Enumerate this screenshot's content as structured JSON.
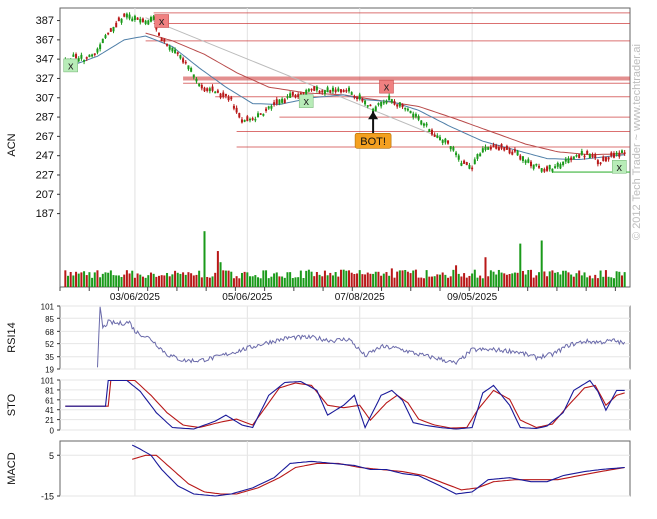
{
  "watermark": "© 2012 Tech Trader ~ www.techtrader.ai",
  "colors": {
    "up": "#1a9a1a",
    "down": "#b81818",
    "ma_blue": "#4f7fa8",
    "ma_red": "#b84a4a",
    "trendline": "#bbbbbb",
    "resistance": "#cc3333",
    "support": "#3cb43c",
    "rsi_line": "#6a6aaa",
    "stoch_k": "#1a1a9a",
    "stoch_d": "#b81818",
    "macd_line": "#1a1a9a",
    "signal_line": "#b81818",
    "marker_red_bg": "#f08080",
    "marker_green_bg": "#b8ecb8",
    "bot_bg": "#f4a020"
  },
  "chart_data": [
    {
      "type": "candlestick",
      "ylabel": "ACN",
      "ylim": [
        170,
        400
      ],
      "ticks": [
        387,
        367,
        347,
        327,
        307,
        287,
        267,
        247,
        227,
        207,
        187
      ],
      "x_ticks": [
        "03/06/2025",
        "05/06/2025",
        "07/08/2025",
        "09/05/2025"
      ],
      "x_tick_index": [
        26,
        68,
        110,
        152
      ],
      "n_bars": 210,
      "anchors": [
        [
          0,
          343
        ],
        [
          3,
          350
        ],
        [
          8,
          346
        ],
        [
          12,
          356
        ],
        [
          17,
          378
        ],
        [
          22,
          391
        ],
        [
          30,
          385
        ],
        [
          33,
          389
        ],
        [
          35,
          372
        ],
        [
          40,
          357
        ],
        [
          46,
          338
        ],
        [
          50,
          320
        ],
        [
          56,
          313
        ],
        [
          62,
          305
        ],
        [
          66,
          282
        ],
        [
          72,
          287
        ],
        [
          76,
          296
        ],
        [
          84,
          309
        ],
        [
          92,
          316
        ],
        [
          100,
          314
        ],
        [
          106,
          314
        ],
        [
          112,
          302
        ],
        [
          115,
          294
        ],
        [
          117,
          302
        ],
        [
          122,
          305
        ],
        [
          128,
          293
        ],
        [
          134,
          281
        ],
        [
          138,
          270
        ],
        [
          143,
          260
        ],
        [
          148,
          240
        ],
        [
          152,
          236
        ],
        [
          156,
          254
        ],
        [
          162,
          256
        ],
        [
          168,
          250
        ],
        [
          172,
          240
        ],
        [
          176,
          236
        ],
        [
          180,
          232
        ],
        [
          184,
          236
        ],
        [
          190,
          247
        ],
        [
          196,
          248
        ],
        [
          200,
          241
        ],
        [
          204,
          246
        ],
        [
          209,
          250
        ]
      ],
      "ma_fast_anchors": [
        [
          0,
          338
        ],
        [
          12,
          350
        ],
        [
          22,
          367
        ],
        [
          30,
          371
        ],
        [
          40,
          360
        ],
        [
          50,
          338
        ],
        [
          60,
          318
        ],
        [
          70,
          301
        ],
        [
          80,
          300
        ],
        [
          92,
          307
        ],
        [
          104,
          310
        ],
        [
          112,
          305
        ],
        [
          122,
          303
        ],
        [
          132,
          294
        ],
        [
          144,
          277
        ],
        [
          156,
          262
        ],
        [
          168,
          253
        ],
        [
          180,
          244
        ],
        [
          192,
          243
        ],
        [
          209,
          248
        ]
      ],
      "ma_slow_anchors": [
        [
          30,
          374
        ],
        [
          40,
          366
        ],
        [
          52,
          352
        ],
        [
          64,
          333
        ],
        [
          76,
          318
        ],
        [
          90,
          312
        ],
        [
          104,
          310
        ],
        [
          118,
          304
        ],
        [
          132,
          298
        ],
        [
          146,
          285
        ],
        [
          160,
          271
        ],
        [
          172,
          259
        ],
        [
          184,
          251
        ],
        [
          196,
          248
        ],
        [
          209,
          249
        ]
      ],
      "volume": {
        "ylim": [
          0,
          100
        ],
        "up_high": [
          [
            24,
            62
          ],
          [
            52,
            90
          ],
          [
            58,
            40
          ],
          [
            103,
            48
          ],
          [
            112,
            97
          ],
          [
            128,
            42
          ],
          [
            144,
            58
          ],
          [
            170,
            70
          ],
          [
            178,
            75
          ],
          [
            190,
            80
          ],
          [
            199,
            68
          ]
        ],
        "down_high": [
          [
            33,
            60
          ],
          [
            57,
            58
          ],
          [
            91,
            52
          ],
          [
            116,
            58
          ],
          [
            122,
            30
          ],
          [
            131,
            28
          ],
          [
            146,
            35
          ],
          [
            157,
            48
          ],
          [
            172,
            58
          ],
          [
            185,
            65
          ],
          [
            193,
            50
          ],
          [
            201,
            42
          ]
        ]
      },
      "resistance_lines": [
        {
          "y": 395,
          "x0": 33,
          "x1": 209,
          "width": 1
        },
        {
          "y": 384,
          "x0": 33,
          "x1": 209,
          "width": 1
        },
        {
          "y": 366,
          "x0": 30,
          "x1": 209,
          "width": 1
        },
        {
          "y": 327,
          "x0": 44,
          "x1": 209,
          "width": 4
        },
        {
          "y": 322,
          "x0": 44,
          "x1": 209,
          "width": 1
        },
        {
          "y": 308,
          "x0": 56,
          "x1": 209,
          "width": 1
        },
        {
          "y": 287,
          "x0": 80,
          "x1": 209,
          "width": 1
        },
        {
          "y": 272,
          "x0": 64,
          "x1": 209,
          "width": 1
        },
        {
          "y": 256,
          "x0": 64,
          "x1": 209,
          "width": 1
        }
      ],
      "support_line": {
        "y": 230,
        "x0": 182,
        "x1": 209
      },
      "trendline": [
        [
          30,
          390
        ],
        [
          140,
          266
        ]
      ],
      "markers": [
        {
          "label": "x",
          "style": "red",
          "index": 36,
          "price": 386
        },
        {
          "label": "x",
          "style": "red",
          "index": 120,
          "price": 318
        },
        {
          "label": "x",
          "style": "green",
          "index": 2,
          "price": 340
        },
        {
          "label": "x",
          "style": "green",
          "index": 90,
          "price": 303
        },
        {
          "label": "x",
          "style": "green",
          "index": 207,
          "price": 235
        }
      ],
      "signal": {
        "label": "BOT!",
        "index": 115,
        "price": 293
      }
    },
    {
      "type": "line",
      "ylabel": "RSI14",
      "ylim": [
        19,
        101
      ],
      "ticks": [
        101,
        85,
        68,
        52,
        35,
        19
      ],
      "start_index": 12,
      "anchors": [
        [
          12,
          19
        ],
        [
          13,
          101
        ],
        [
          14,
          72
        ],
        [
          16,
          80
        ],
        [
          20,
          78
        ],
        [
          24,
          80
        ],
        [
          26,
          68
        ],
        [
          32,
          58
        ],
        [
          38,
          38
        ],
        [
          44,
          30
        ],
        [
          50,
          30
        ],
        [
          56,
          34
        ],
        [
          62,
          40
        ],
        [
          68,
          46
        ],
        [
          76,
          54
        ],
        [
          84,
          60
        ],
        [
          92,
          60
        ],
        [
          100,
          56
        ],
        [
          106,
          58
        ],
        [
          112,
          36
        ],
        [
          118,
          48
        ],
        [
          124,
          46
        ],
        [
          132,
          38
        ],
        [
          140,
          32
        ],
        [
          146,
          26
        ],
        [
          152,
          44
        ],
        [
          160,
          44
        ],
        [
          168,
          42
        ],
        [
          176,
          34
        ],
        [
          182,
          38
        ],
        [
          188,
          50
        ],
        [
          194,
          55
        ],
        [
          200,
          54
        ],
        [
          205,
          56
        ],
        [
          209,
          52
        ]
      ]
    },
    {
      "type": "line",
      "ylabel": "STO",
      "ylim": [
        0,
        101
      ],
      "ticks": [
        101,
        81,
        61,
        41,
        21,
        0
      ],
      "k_anchors": [
        [
          0,
          48
        ],
        [
          15,
          48
        ],
        [
          16,
          100
        ],
        [
          23,
          100
        ],
        [
          28,
          78
        ],
        [
          34,
          35
        ],
        [
          40,
          5
        ],
        [
          48,
          2
        ],
        [
          56,
          18
        ],
        [
          60,
          30
        ],
        [
          66,
          10
        ],
        [
          70,
          5
        ],
        [
          76,
          70
        ],
        [
          82,
          96
        ],
        [
          88,
          98
        ],
        [
          94,
          80
        ],
        [
          98,
          30
        ],
        [
          104,
          50
        ],
        [
          108,
          70
        ],
        [
          112,
          5
        ],
        [
          118,
          70
        ],
        [
          122,
          80
        ],
        [
          126,
          60
        ],
        [
          130,
          15
        ],
        [
          134,
          10
        ],
        [
          140,
          5
        ],
        [
          146,
          2
        ],
        [
          152,
          5
        ],
        [
          156,
          75
        ],
        [
          160,
          90
        ],
        [
          166,
          50
        ],
        [
          170,
          5
        ],
        [
          176,
          3
        ],
        [
          180,
          8
        ],
        [
          186,
          35
        ],
        [
          190,
          80
        ],
        [
          196,
          100
        ],
        [
          199,
          78
        ],
        [
          202,
          40
        ],
        [
          206,
          80
        ],
        [
          209,
          80
        ]
      ],
      "d_anchors": [
        [
          0,
          48
        ],
        [
          16,
          48
        ],
        [
          17,
          100
        ],
        [
          26,
          100
        ],
        [
          32,
          70
        ],
        [
          38,
          35
        ],
        [
          44,
          10
        ],
        [
          50,
          5
        ],
        [
          58,
          16
        ],
        [
          64,
          22
        ],
        [
          70,
          10
        ],
        [
          74,
          40
        ],
        [
          80,
          85
        ],
        [
          86,
          95
        ],
        [
          92,
          90
        ],
        [
          98,
          50
        ],
        [
          104,
          45
        ],
        [
          110,
          50
        ],
        [
          114,
          20
        ],
        [
          120,
          55
        ],
        [
          124,
          70
        ],
        [
          128,
          55
        ],
        [
          132,
          22
        ],
        [
          138,
          10
        ],
        [
          144,
          4
        ],
        [
          150,
          5
        ],
        [
          154,
          40
        ],
        [
          160,
          80
        ],
        [
          166,
          62
        ],
        [
          170,
          20
        ],
        [
          176,
          5
        ],
        [
          182,
          12
        ],
        [
          188,
          50
        ],
        [
          194,
          85
        ],
        [
          198,
          90
        ],
        [
          202,
          50
        ],
        [
          206,
          70
        ],
        [
          209,
          75
        ]
      ]
    },
    {
      "type": "line",
      "ylabel": "MACD",
      "ylim": [
        -15,
        12
      ],
      "ticks": [
        5,
        -15
      ],
      "macd_anchors": [
        [
          25,
          10
        ],
        [
          28,
          8
        ],
        [
          32,
          5
        ],
        [
          36,
          -2
        ],
        [
          42,
          -10
        ],
        [
          48,
          -14
        ],
        [
          56,
          -15
        ],
        [
          62,
          -14
        ],
        [
          70,
          -11
        ],
        [
          78,
          -6
        ],
        [
          84,
          1
        ],
        [
          92,
          2
        ],
        [
          100,
          1
        ],
        [
          108,
          0
        ],
        [
          114,
          -2
        ],
        [
          120,
          -2
        ],
        [
          126,
          -4
        ],
        [
          132,
          -5
        ],
        [
          140,
          -10
        ],
        [
          146,
          -14
        ],
        [
          152,
          -13
        ],
        [
          158,
          -7
        ],
        [
          166,
          -6
        ],
        [
          174,
          -8
        ],
        [
          180,
          -8
        ],
        [
          186,
          -5
        ],
        [
          194,
          -3
        ],
        [
          200,
          -2
        ],
        [
          209,
          -1
        ]
      ],
      "signal_anchors": [
        [
          25,
          3
        ],
        [
          30,
          5
        ],
        [
          34,
          5
        ],
        [
          40,
          -2
        ],
        [
          46,
          -9
        ],
        [
          52,
          -13
        ],
        [
          58,
          -14
        ],
        [
          64,
          -14
        ],
        [
          72,
          -11
        ],
        [
          80,
          -6
        ],
        [
          86,
          -1
        ],
        [
          94,
          1
        ],
        [
          102,
          1
        ],
        [
          110,
          -1
        ],
        [
          118,
          -2
        ],
        [
          126,
          -3
        ],
        [
          134,
          -5
        ],
        [
          142,
          -9
        ],
        [
          148,
          -12
        ],
        [
          154,
          -11
        ],
        [
          160,
          -8
        ],
        [
          168,
          -7
        ],
        [
          176,
          -7
        ],
        [
          184,
          -7
        ],
        [
          192,
          -5
        ],
        [
          200,
          -3
        ],
        [
          209,
          -1
        ]
      ]
    }
  ]
}
